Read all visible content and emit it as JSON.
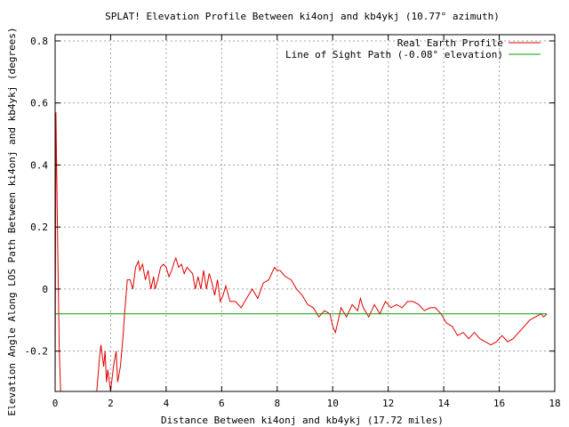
{
  "chart_data": {
    "type": "line",
    "title": "SPLAT! Elevation Profile Between ki4onj and kb4ykj (10.77° azimuth)",
    "xlabel": "Distance Between ki4onj and kb4ykj (17.72 miles)",
    "ylabel": "Elevation Angle Along LOS Path Between ki4onj and kb4ykj (degrees)",
    "xlim": [
      0,
      18
    ],
    "ylim": [
      -0.33,
      0.82
    ],
    "x_ticks": [
      0,
      2,
      4,
      6,
      8,
      10,
      12,
      14,
      16,
      18
    ],
    "x_tick_labels": [
      "0",
      "2",
      "4",
      "6",
      "8",
      "10",
      "12",
      "14",
      "16",
      "18"
    ],
    "y_ticks": [
      -0.2,
      0,
      0.2,
      0.4,
      0.6,
      0.8
    ],
    "y_tick_labels": [
      "-0.2",
      "0",
      "0.2",
      "0.4",
      "0.6",
      "0.8"
    ],
    "grid": true,
    "legend_position": "top-right",
    "colors": {
      "profile": "#e00000",
      "los": "#00a000"
    },
    "series": [
      {
        "name": "Real Earth Profile",
        "color": "#e00000",
        "x": [
          0.0,
          0.03,
          0.06,
          0.1,
          0.15,
          0.2,
          1.5,
          1.6,
          1.65,
          1.75,
          1.8,
          1.85,
          1.9,
          2.0,
          2.1,
          2.2,
          2.25,
          2.35,
          2.45,
          2.5,
          2.6,
          2.7,
          2.8,
          2.9,
          3.0,
          3.05,
          3.15,
          3.25,
          3.35,
          3.45,
          3.55,
          3.6,
          3.7,
          3.8,
          3.9,
          4.0,
          4.1,
          4.2,
          4.3,
          4.35,
          4.45,
          4.55,
          4.65,
          4.75,
          4.85,
          4.95,
          5.05,
          5.15,
          5.25,
          5.35,
          5.45,
          5.55,
          5.65,
          5.75,
          5.85,
          5.95,
          6.05,
          6.15,
          6.3,
          6.5,
          6.7,
          6.9,
          7.1,
          7.3,
          7.5,
          7.7,
          7.9,
          8.0,
          8.1,
          8.3,
          8.5,
          8.7,
          8.9,
          9.1,
          9.3,
          9.5,
          9.7,
          9.9,
          10.0,
          10.1,
          10.2,
          10.3,
          10.5,
          10.7,
          10.9,
          11.0,
          11.1,
          11.3,
          11.5,
          11.7,
          11.9,
          12.1,
          12.3,
          12.5,
          12.7,
          12.9,
          13.1,
          13.3,
          13.5,
          13.7,
          13.9,
          14.1,
          14.3,
          14.5,
          14.7,
          14.9,
          15.1,
          15.3,
          15.5,
          15.7,
          15.9,
          16.1,
          16.3,
          16.5,
          16.7,
          16.9,
          17.1,
          17.3,
          17.5,
          17.6,
          17.72
        ],
        "values": [
          -0.33,
          0.57,
          0.35,
          0.1,
          -0.2,
          -0.33,
          -0.33,
          -0.22,
          -0.18,
          -0.25,
          -0.2,
          -0.3,
          -0.26,
          -0.33,
          -0.25,
          -0.2,
          -0.3,
          -0.25,
          -0.15,
          -0.08,
          0.03,
          0.03,
          0.0,
          0.07,
          0.09,
          0.06,
          0.08,
          0.03,
          0.06,
          0.0,
          0.04,
          0.0,
          0.03,
          0.07,
          0.08,
          0.07,
          0.04,
          0.06,
          0.09,
          0.1,
          0.07,
          0.08,
          0.05,
          0.07,
          0.06,
          0.05,
          0.0,
          0.04,
          0.0,
          0.06,
          0.0,
          0.05,
          0.02,
          -0.02,
          0.03,
          -0.04,
          -0.02,
          0.01,
          -0.04,
          -0.04,
          -0.06,
          -0.03,
          0.0,
          -0.03,
          0.02,
          0.03,
          0.07,
          0.06,
          0.06,
          0.04,
          0.03,
          0.0,
          -0.02,
          -0.05,
          -0.06,
          -0.09,
          -0.07,
          -0.08,
          -0.12,
          -0.14,
          -0.1,
          -0.06,
          -0.09,
          -0.05,
          -0.07,
          -0.03,
          -0.06,
          -0.09,
          -0.05,
          -0.08,
          -0.04,
          -0.06,
          -0.05,
          -0.06,
          -0.04,
          -0.04,
          -0.05,
          -0.07,
          -0.06,
          -0.06,
          -0.08,
          -0.11,
          -0.12,
          -0.15,
          -0.14,
          -0.16,
          -0.14,
          -0.16,
          -0.17,
          -0.18,
          -0.17,
          -0.15,
          -0.17,
          -0.16,
          -0.14,
          -0.12,
          -0.1,
          -0.09,
          -0.08,
          -0.09,
          -0.08
        ]
      },
      {
        "name": "Line of Sight Path (-0.08° elevation)",
        "color": "#00a000",
        "x": [
          0,
          17.72
        ],
        "values": [
          -0.08,
          -0.08
        ]
      }
    ]
  }
}
